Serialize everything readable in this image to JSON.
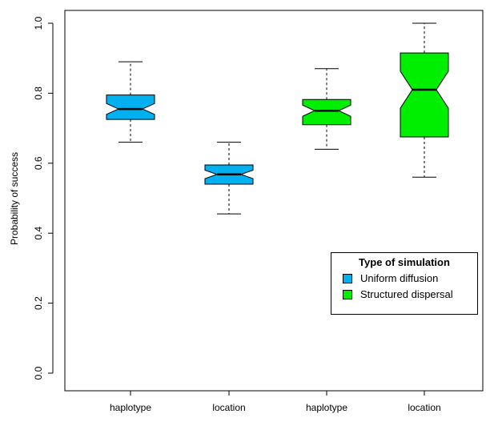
{
  "chart_data": {
    "type": "boxplot",
    "ylabel": "Probability of success",
    "ylim": [
      0,
      1
    ],
    "yticks": [
      "0.0",
      "0.2",
      "0.4",
      "0.6",
      "0.8",
      "1.0"
    ],
    "categories": [
      "haplotype",
      "location",
      "haplotype",
      "location"
    ],
    "boxes": [
      {
        "category": "haplotype",
        "group": "Uniform diffusion",
        "min": 0.66,
        "q1": 0.725,
        "median": 0.755,
        "q3": 0.795,
        "max": 0.89
      },
      {
        "category": "location",
        "group": "Uniform diffusion",
        "min": 0.455,
        "q1": 0.54,
        "median": 0.568,
        "q3": 0.595,
        "max": 0.66
      },
      {
        "category": "haplotype",
        "group": "Structured dispersal",
        "min": 0.64,
        "q1": 0.71,
        "median": 0.75,
        "q3": 0.782,
        "max": 0.87
      },
      {
        "category": "location",
        "group": "Structured dispersal",
        "min": 0.56,
        "q1": 0.675,
        "median": 0.81,
        "q3": 0.915,
        "max": 1.0
      }
    ],
    "legend": {
      "title": "Type of simulation",
      "position": "right",
      "items": [
        {
          "label": "Uniform diffusion",
          "color": "#00b0f0"
        },
        {
          "label": "Structured dispersal",
          "color": "#00ee00"
        }
      ]
    },
    "grid": false
  }
}
